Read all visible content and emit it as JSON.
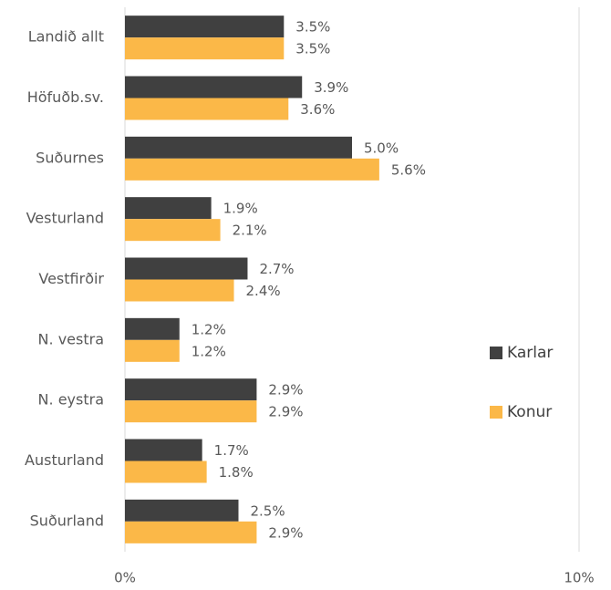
{
  "chart_data": {
    "type": "bar",
    "orientation": "horizontal",
    "categories": [
      "Landið allt",
      "Höfuðb.sv.",
      "Suðurnes",
      "Vesturland",
      "Vestfirðir",
      "N. vestra",
      "N. eystra",
      "Austurland",
      "Suðurland"
    ],
    "series": [
      {
        "name": "Karlar",
        "color": "#404040",
        "values": [
          3.5,
          3.9,
          5.0,
          1.9,
          2.7,
          1.2,
          2.9,
          1.7,
          2.5
        ],
        "value_labels": [
          "3.5%",
          "3.9%",
          "5.0%",
          "1.9%",
          "2.7%",
          "1.2%",
          "2.9%",
          "1.7%",
          "2.5%"
        ]
      },
      {
        "name": "Konur",
        "color": "#fbb848",
        "values": [
          3.5,
          3.6,
          5.6,
          2.1,
          2.4,
          1.2,
          2.9,
          1.8,
          2.9
        ],
        "value_labels": [
          "3.5%",
          "3.6%",
          "5.6%",
          "2.1%",
          "2.4%",
          "1.2%",
          "2.9%",
          "1.8%",
          "2.9%"
        ]
      }
    ],
    "xlim": [
      0,
      10
    ],
    "xticks": [
      {
        "value": 0,
        "label": "0%"
      },
      {
        "value": 10,
        "label": "10%"
      }
    ],
    "grid": true,
    "legend": "right"
  }
}
